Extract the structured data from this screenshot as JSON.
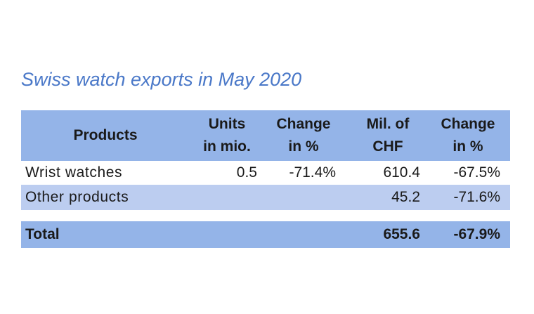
{
  "chart_data": {
    "type": "table",
    "title": "Swiss watch exports in May 2020",
    "columns": [
      {
        "line1": "Products",
        "line2": ""
      },
      {
        "line1": "Units",
        "line2": "in mio."
      },
      {
        "line1": "Change",
        "line2": "in %"
      },
      {
        "line1": "Mil. of",
        "line2": "CHF"
      },
      {
        "line1": "Change",
        "line2": "in %"
      }
    ],
    "rows": [
      {
        "label": "Wrist watches",
        "units": "0.5",
        "units_change": "-71.4%",
        "chf": "610.4",
        "chf_change": "-67.5%"
      },
      {
        "label": "Other products",
        "units": "",
        "units_change": "",
        "chf": "45.2",
        "chf_change": "-71.6%"
      }
    ],
    "total": {
      "label": "Total",
      "units": "",
      "units_change": "",
      "chf": "655.6",
      "chf_change": "-67.9%"
    }
  },
  "colors": {
    "title": "#4a78c8",
    "header_fill": "#94b4e8",
    "alt_row_fill": "#bccdf0"
  }
}
